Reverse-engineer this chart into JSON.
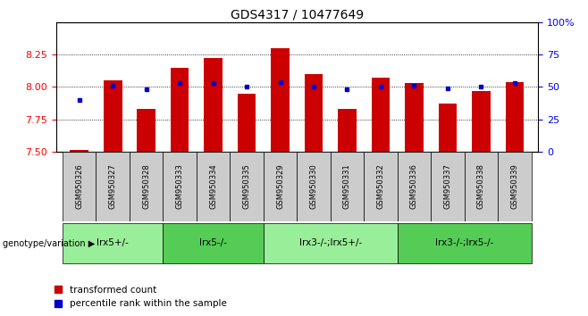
{
  "title": "GDS4317 / 10477649",
  "samples": [
    "GSM950326",
    "GSM950327",
    "GSM950328",
    "GSM950333",
    "GSM950334",
    "GSM950335",
    "GSM950329",
    "GSM950330",
    "GSM950331",
    "GSM950332",
    "GSM950336",
    "GSM950337",
    "GSM950338",
    "GSM950339"
  ],
  "red_values": [
    7.51,
    8.05,
    7.83,
    8.15,
    8.22,
    7.95,
    8.3,
    8.1,
    7.83,
    8.07,
    8.03,
    7.87,
    7.97,
    8.04
  ],
  "blue_percentile": [
    40,
    51,
    48,
    53,
    53,
    50,
    54,
    50,
    48,
    50,
    51,
    49,
    50,
    53
  ],
  "groups": [
    {
      "label": "lrx5+/-",
      "start": 0,
      "end": 2,
      "color": "#99ee99"
    },
    {
      "label": "lrx5-/-",
      "start": 3,
      "end": 5,
      "color": "#55cc55"
    },
    {
      "label": "lrx3-/-;lrx5+/-",
      "start": 6,
      "end": 9,
      "color": "#99ee99"
    },
    {
      "label": "lrx3-/-;lrx5-/-",
      "start": 10,
      "end": 13,
      "color": "#55cc55"
    }
  ],
  "ylim_left": [
    7.5,
    8.5
  ],
  "ylim_right": [
    0,
    100
  ],
  "yticks_left": [
    7.5,
    7.75,
    8.0,
    8.25
  ],
  "yticks_right": [
    0,
    25,
    50,
    75,
    100
  ],
  "bar_color": "#cc0000",
  "dot_color": "#0000cc",
  "bar_bottom": 7.5,
  "legend_red": "transformed count",
  "legend_blue": "percentile rank within the sample",
  "group_label": "genotype/variation"
}
